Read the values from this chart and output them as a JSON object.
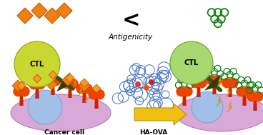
{
  "bg_color": "#ffffff",
  "antigenicity_text": "Antigenicity",
  "less_than_symbol": "<",
  "ha_ova_text": "HA-OVA",
  "cancer_cell_text": "Cancer cell",
  "ctl_text": "CTL",
  "ctl2_text": "CTL",
  "left_ctl_color": "#c8d830",
  "right_ctl_color": "#a8d870",
  "left_cancer_color": "#d8a8d8",
  "right_cancer_color": "#d8a8d8",
  "nucleus_color": "#a0c0e8",
  "arrow_color": "#f0c010",
  "orange_color": "#f08010",
  "orange_edge": "#cc5500",
  "green_color": "#30a030",
  "green_edge": "#108010",
  "lightning_color": "#f0c010",
  "receptor_stem": "#cc2200",
  "receptor_head": "#ee4400",
  "blue_chain": "#4070c0",
  "connector_color": "#3a5010"
}
